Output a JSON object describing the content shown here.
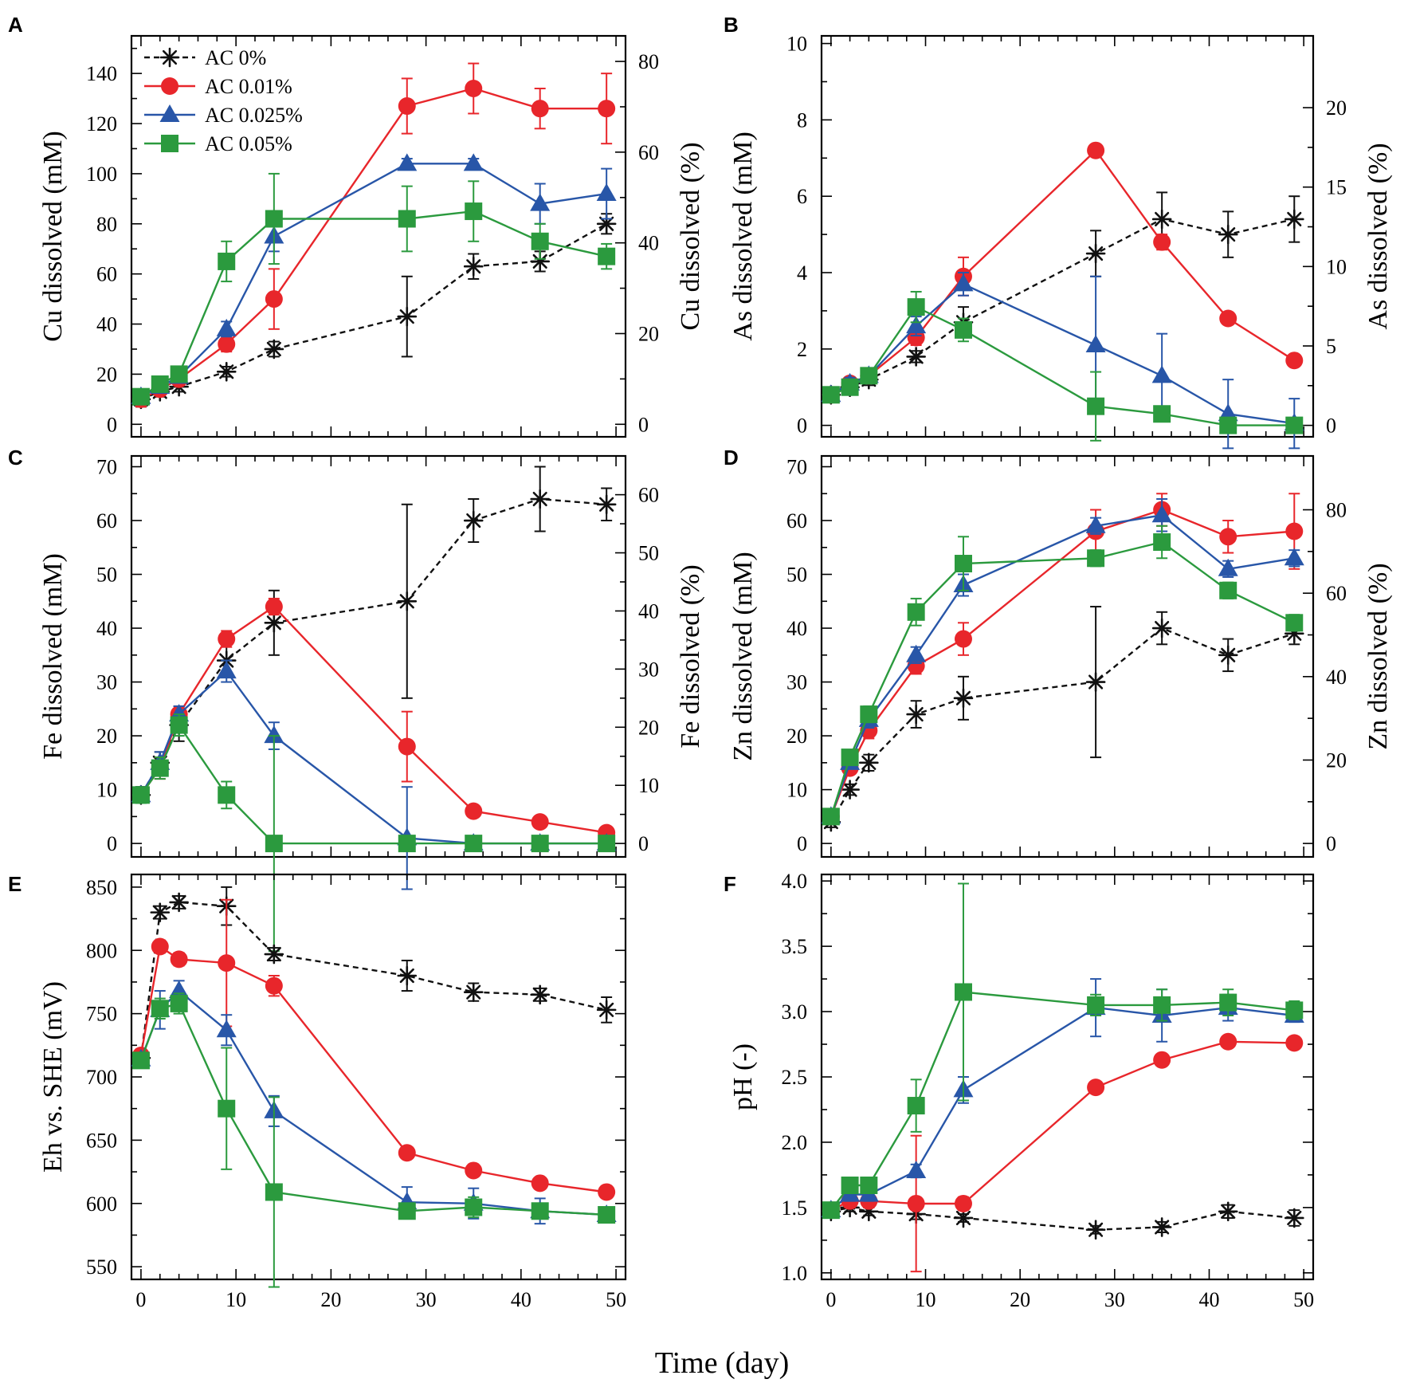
{
  "figure": {
    "xlabel": "Time (day)",
    "x_ticks": [
      "0",
      "10",
      "20",
      "30",
      "40",
      "50"
    ],
    "legend": [
      {
        "name": "AC 0%",
        "color": "#111111",
        "marker": "star",
        "dashed": true
      },
      {
        "name": "AC 0.01%",
        "color": "#e8262b",
        "marker": "circle",
        "dashed": false
      },
      {
        "name": "AC 0.025%",
        "color": "#2856a8",
        "marker": "triangle",
        "dashed": false
      },
      {
        "name": "AC 0.05%",
        "color": "#2b9a3e",
        "marker": "square",
        "dashed": false
      }
    ]
  },
  "chart_data": [
    {
      "panel": "A",
      "type": "line",
      "ylabel": "Cu dissolved (mM)",
      "ylabel_right": "Cu dissolved (%)",
      "ylim": [
        -5,
        155
      ],
      "xlim": [
        -1,
        51
      ],
      "y_ticks": [
        0,
        20,
        40,
        60,
        80,
        100,
        120,
        140
      ],
      "y2_ticks": [
        {
          "label": "0",
          "at": 0
        },
        {
          "label": "20",
          "at": 36.2
        },
        {
          "label": "40",
          "at": 72.4
        },
        {
          "label": "60",
          "at": 108.6
        },
        {
          "label": "80",
          "at": 144.8
        }
      ],
      "series": [
        {
          "name": "AC 0%",
          "x": [
            0,
            2,
            4,
            9,
            14,
            28,
            35,
            42,
            49
          ],
          "y": [
            10,
            13,
            15,
            21,
            30,
            43,
            63,
            65,
            80
          ],
          "err": [
            3,
            2,
            2,
            2,
            3,
            16,
            5,
            4,
            4
          ]
        },
        {
          "name": "AC 0.01%",
          "x": [
            0,
            2,
            4,
            9,
            14,
            28,
            35,
            42,
            49
          ],
          "y": [
            10,
            14,
            18,
            32,
            50,
            127,
            134,
            126,
            126
          ],
          "err": [
            3,
            2,
            2,
            3,
            12,
            11,
            10,
            8,
            14
          ]
        },
        {
          "name": "AC 0.025%",
          "x": [
            0,
            2,
            4,
            9,
            14,
            28,
            35,
            42,
            49
          ],
          "y": [
            11,
            15,
            19,
            38,
            75,
            104,
            104,
            88,
            92
          ],
          "err": [
            3,
            2,
            2,
            3,
            6,
            2,
            2,
            8,
            10
          ]
        },
        {
          "name": "AC 0.05%",
          "x": [
            0,
            2,
            4,
            9,
            14,
            28,
            35,
            42,
            49
          ],
          "y": [
            11,
            16,
            20,
            65,
            82,
            82,
            85,
            73,
            67
          ],
          "err": [
            3,
            2,
            2,
            8,
            18,
            13,
            12,
            7,
            5
          ]
        }
      ]
    },
    {
      "panel": "B",
      "type": "line",
      "ylabel": "As dissolved (mM)",
      "ylabel_right": "As dissolved (%)",
      "ylim": [
        -0.3,
        10.2
      ],
      "xlim": [
        -1,
        51
      ],
      "y_ticks": [
        0,
        2,
        4,
        6,
        8,
        10
      ],
      "y2_ticks": [
        {
          "label": "0",
          "at": 0
        },
        {
          "label": "5",
          "at": 2.08
        },
        {
          "label": "10",
          "at": 4.16
        },
        {
          "label": "15",
          "at": 6.24
        },
        {
          "label": "20",
          "at": 8.32
        }
      ],
      "series": [
        {
          "name": "AC 0%",
          "x": [
            0,
            2,
            4,
            9,
            14,
            28,
            35,
            42,
            49
          ],
          "y": [
            0.8,
            1.0,
            1.2,
            1.8,
            2.7,
            4.5,
            5.4,
            5.0,
            5.4
          ],
          "err": [
            0.15,
            0.15,
            0.15,
            0.15,
            0.4,
            0.6,
            0.7,
            0.6,
            0.6
          ]
        },
        {
          "name": "AC 0.01%",
          "x": [
            0,
            2,
            4,
            9,
            14,
            28,
            35,
            42,
            49
          ],
          "y": [
            0.8,
            1.1,
            1.3,
            2.3,
            3.9,
            7.2,
            4.8,
            2.8,
            1.7
          ],
          "err": [
            0.15,
            0.15,
            0.15,
            0.2,
            0.5,
            0.1,
            0.2,
            0.15,
            0.1
          ]
        },
        {
          "name": "AC 0.025%",
          "x": [
            0,
            2,
            4,
            9,
            14,
            28,
            35,
            42,
            49
          ],
          "y": [
            0.8,
            1.1,
            1.3,
            2.6,
            3.7,
            2.1,
            1.3,
            0.3,
            0.05
          ],
          "err": [
            0.15,
            0.15,
            0.15,
            0.25,
            0.3,
            1.8,
            1.1,
            0.9,
            0.65
          ]
        },
        {
          "name": "AC 0.05%",
          "x": [
            0,
            2,
            4,
            9,
            14,
            28,
            35,
            42,
            49
          ],
          "y": [
            0.8,
            1.0,
            1.3,
            3.1,
            2.5,
            0.5,
            0.3,
            0.0,
            0.0
          ],
          "err": [
            0.15,
            0.15,
            0.15,
            0.4,
            0.3,
            0.9,
            0.2,
            0.1,
            0.1
          ]
        }
      ]
    },
    {
      "panel": "C",
      "type": "line",
      "ylabel": "Fe dissolved (mM)",
      "ylabel_right": "Fe dissolved (%)",
      "ylim": [
        -2.5,
        72
      ],
      "xlim": [
        -1,
        51
      ],
      "y_ticks": [
        0,
        10,
        20,
        30,
        40,
        50,
        60,
        70
      ],
      "y2_ticks": [
        {
          "label": "0",
          "at": 0
        },
        {
          "label": "10",
          "at": 10.8
        },
        {
          "label": "20",
          "at": 21.6
        },
        {
          "label": "30",
          "at": 32.4
        },
        {
          "label": "40",
          "at": 43.2
        },
        {
          "label": "50",
          "at": 54
        },
        {
          "label": "60",
          "at": 64.8
        }
      ],
      "series": [
        {
          "name": "AC 0%",
          "x": [
            0,
            2,
            4,
            9,
            14,
            28,
            35,
            42,
            49
          ],
          "y": [
            9,
            15,
            22,
            34,
            41,
            45,
            60,
            64,
            63
          ],
          "err": [
            1.5,
            2,
            3,
            3,
            6,
            18,
            4,
            6,
            3
          ]
        },
        {
          "name": "AC 0.01%",
          "x": [
            0,
            2,
            4,
            9,
            14,
            28,
            35,
            42,
            49
          ],
          "y": [
            9,
            14,
            24,
            38,
            44,
            18,
            6,
            4,
            2
          ],
          "err": [
            1.5,
            2,
            1.5,
            1.5,
            1.5,
            6.5,
            0.5,
            0.5,
            0.5
          ]
        },
        {
          "name": "AC 0.025%",
          "x": [
            0,
            2,
            4,
            9,
            14,
            28,
            35,
            42,
            49
          ],
          "y": [
            9,
            15,
            24,
            32,
            20,
            1,
            0,
            0,
            0
          ],
          "err": [
            1.5,
            2,
            1.5,
            2,
            2.5,
            9.5,
            0.5,
            0.5,
            0.5
          ]
        },
        {
          "name": "AC 0.05%",
          "x": [
            0,
            2,
            4,
            9,
            14,
            28,
            35,
            42,
            49
          ],
          "y": [
            9,
            14,
            22,
            9,
            0,
            0,
            0,
            0,
            0
          ],
          "err": [
            1.5,
            2,
            2,
            2.5,
            20,
            0.3,
            0.3,
            0.3,
            0.3
          ]
        }
      ]
    },
    {
      "panel": "D",
      "type": "line",
      "ylabel": "Zn dissolved (mM)",
      "ylabel_right": "Zn dissolved (%)",
      "ylim": [
        -2.5,
        72
      ],
      "xlim": [
        -1,
        51
      ],
      "y_ticks": [
        0,
        10,
        20,
        30,
        40,
        50,
        60,
        70
      ],
      "y2_ticks": [
        {
          "label": "0",
          "at": 0
        },
        {
          "label": "20",
          "at": 15.5
        },
        {
          "label": "40",
          "at": 31
        },
        {
          "label": "60",
          "at": 46.5
        },
        {
          "label": "80",
          "at": 62
        }
      ],
      "series": [
        {
          "name": "AC 0%",
          "x": [
            0,
            2,
            4,
            9,
            14,
            28,
            35,
            42,
            49
          ],
          "y": [
            4,
            10,
            15,
            24,
            27,
            30,
            40,
            35,
            39
          ],
          "err": [
            1,
            1,
            1.5,
            2.5,
            4,
            14,
            3,
            3,
            2
          ]
        },
        {
          "name": "AC 0.01%",
          "x": [
            0,
            2,
            4,
            9,
            14,
            28,
            35,
            42,
            49
          ],
          "y": [
            5,
            14,
            21,
            33,
            38,
            58,
            62,
            57,
            58
          ],
          "err": [
            1,
            1,
            1.5,
            1.5,
            3,
            4,
            3,
            3,
            7
          ]
        },
        {
          "name": "AC 0.025%",
          "x": [
            0,
            2,
            4,
            9,
            14,
            28,
            35,
            42,
            49
          ],
          "y": [
            5,
            15,
            23,
            35,
            48,
            59,
            61,
            51,
            53
          ],
          "err": [
            1,
            1,
            1.5,
            1.5,
            2,
            1.5,
            3,
            1.5,
            1.5
          ]
        },
        {
          "name": "AC 0.05%",
          "x": [
            0,
            2,
            4,
            9,
            14,
            28,
            35,
            42,
            49
          ],
          "y": [
            5,
            16,
            24,
            43,
            52,
            53,
            56,
            47,
            41
          ],
          "err": [
            1,
            1,
            1.5,
            2.5,
            5,
            1.5,
            3,
            1.5,
            1.5
          ]
        }
      ]
    },
    {
      "panel": "E",
      "type": "line",
      "ylabel": "Eh vs. SHE (mV)",
      "ylim": [
        540,
        860
      ],
      "xlim": [
        -1,
        51
      ],
      "y_ticks": [
        550,
        600,
        650,
        700,
        750,
        800,
        850
      ],
      "series": [
        {
          "name": "AC 0%",
          "x": [
            0,
            2,
            4,
            9,
            14,
            28,
            35,
            42,
            49
          ],
          "y": [
            715,
            830,
            838,
            835,
            797,
            780,
            767,
            765,
            753
          ],
          "err": [
            5,
            5,
            5,
            15,
            5,
            12,
            7,
            5,
            10
          ]
        },
        {
          "name": "AC 0.01%",
          "x": [
            0,
            2,
            4,
            9,
            14,
            28,
            35,
            42,
            49
          ],
          "y": [
            717,
            803,
            793,
            790,
            772,
            640,
            626,
            616,
            609
          ],
          "err": [
            5,
            5,
            5,
            50,
            8,
            4,
            4,
            4,
            4
          ]
        },
        {
          "name": "AC 0.025%",
          "x": [
            0,
            2,
            4,
            9,
            14,
            28,
            35,
            42,
            49
          ],
          "y": [
            714,
            753,
            768,
            737,
            673,
            601,
            600,
            594,
            591
          ],
          "err": [
            5,
            15,
            8,
            12,
            12,
            12,
            12,
            10,
            6
          ]
        },
        {
          "name": "AC 0.05%",
          "x": [
            0,
            2,
            4,
            9,
            14,
            28,
            35,
            42,
            49
          ],
          "y": [
            713,
            754,
            758,
            675,
            609,
            594,
            597,
            594,
            591
          ],
          "err": [
            5,
            8,
            8,
            48,
            75,
            5,
            8,
            6,
            5
          ]
        }
      ]
    },
    {
      "panel": "F",
      "type": "line",
      "ylabel": "pH (-)",
      "ylim": [
        0.95,
        4.05
      ],
      "xlim": [
        -1,
        51
      ],
      "y_ticks": [
        "1.0",
        "1.5",
        "2.0",
        "2.5",
        "3.0",
        "3.5",
        "4.0"
      ],
      "series": [
        {
          "name": "AC 0%",
          "x": [
            0,
            2,
            4,
            9,
            14,
            28,
            35,
            42,
            49
          ],
          "y": [
            1.47,
            1.5,
            1.47,
            1.45,
            1.42,
            1.33,
            1.35,
            1.47,
            1.42
          ],
          "err": [
            0.02,
            0.03,
            0.03,
            0.04,
            0.03,
            0.03,
            0.04,
            0.05,
            0.06
          ]
        },
        {
          "name": "AC 0.01%",
          "x": [
            0,
            2,
            4,
            9,
            14,
            28,
            35,
            42,
            49
          ],
          "y": [
            1.48,
            1.55,
            1.55,
            1.53,
            1.53,
            2.42,
            2.63,
            2.77,
            2.76
          ],
          "err": [
            0.02,
            0.05,
            0.05,
            0.52,
            0.05,
            0.02,
            0.02,
            0.02,
            0.02
          ]
        },
        {
          "name": "AC 0.025%",
          "x": [
            0,
            2,
            4,
            9,
            14,
            28,
            35,
            42,
            49
          ],
          "y": [
            1.48,
            1.6,
            1.6,
            1.78,
            2.4,
            3.03,
            2.97,
            3.03,
            2.97
          ],
          "err": [
            0.02,
            0.05,
            0.05,
            0.05,
            0.1,
            0.22,
            0.2,
            0.1,
            0.05
          ]
        },
        {
          "name": "AC 0.05%",
          "x": [
            0,
            2,
            4,
            9,
            14,
            28,
            35,
            42,
            49
          ],
          "y": [
            1.48,
            1.67,
            1.67,
            2.28,
            3.15,
            3.05,
            3.05,
            3.07,
            3.01
          ],
          "err": [
            0.02,
            0.03,
            0.03,
            0.2,
            0.83,
            0.08,
            0.12,
            0.1,
            0.07
          ]
        }
      ]
    }
  ]
}
